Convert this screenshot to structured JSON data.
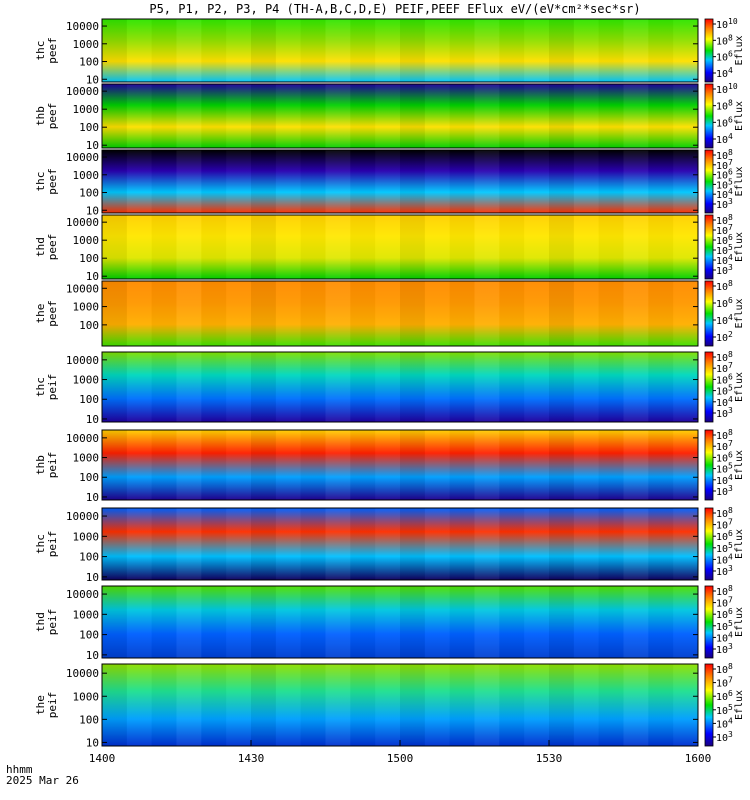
{
  "chart_data": {
    "type": "heatmap",
    "title": "P5, P1, P2, P3, P4 (TH-A,B,C,D,E) PEIF,PEEF EFlux eV/(eV*cm²*sec*sr)",
    "x_axis": {
      "ticks": [
        "1400",
        "1430",
        "1500",
        "1530",
        "1600"
      ],
      "label_lines": [
        "hhmm",
        "2025 Mar 26"
      ]
    },
    "colorbar_label": "Eflux",
    "panels": [
      {
        "label": [
          "thc",
          "peef"
        ],
        "yticks": [
          "10000",
          "1000",
          "100",
          "10"
        ],
        "cbticks": [
          "10^10",
          "10^8",
          "10^6",
          "10^4"
        ],
        "colors": [
          "#2ee600",
          "#8de000",
          "#ffe000",
          "#00c8ff"
        ]
      },
      {
        "label": [
          "thb",
          "peef"
        ],
        "yticks": [
          "10000",
          "1000",
          "100",
          "10"
        ],
        "cbticks": [
          "10^10",
          "10^8",
          "10^6",
          "10^4"
        ],
        "colors": [
          "#1e00a0",
          "#00d000",
          "#ffe000",
          "#00d000"
        ]
      },
      {
        "label": [
          "thc",
          "peef"
        ],
        "yticks": [
          "10000",
          "1000",
          "100",
          "10"
        ],
        "cbticks": [
          "10^8",
          "10^7",
          "10^6",
          "10^5",
          "10^4",
          "10^3"
        ],
        "colors": [
          "#000000",
          "#2a00b0",
          "#00c8ff",
          "#ff3000"
        ]
      },
      {
        "label": [
          "thd",
          "peef"
        ],
        "yticks": [
          "10000",
          "1000",
          "100",
          "10"
        ],
        "cbticks": [
          "10^8",
          "10^7",
          "10^6",
          "10^5",
          "10^4",
          "10^3"
        ],
        "colors": [
          "#ffd000",
          "#ffe800",
          "#e0e800",
          "#00d000"
        ]
      },
      {
        "label": [
          "the",
          "peef"
        ],
        "yticks": [
          "10000",
          "1000",
          "100"
        ],
        "cbticks": [
          "10^8",
          "10^6",
          "10^4",
          "10^2"
        ],
        "colors": [
          "#ff8c00",
          "#ff9800",
          "#ffb000",
          "#40e000"
        ]
      },
      {
        "label": [
          "thc",
          "peif"
        ],
        "yticks": [
          "10000",
          "1000",
          "100",
          "10"
        ],
        "cbticks": [
          "10^8",
          "10^7",
          "10^6",
          "10^5",
          "10^4",
          "10^3"
        ],
        "colors": [
          "#80e000",
          "#00d8c0",
          "#0070ff",
          "#2000a0"
        ]
      },
      {
        "label": [
          "thb",
          "peif"
        ],
        "yticks": [
          "10000",
          "1000",
          "100",
          "10"
        ],
        "cbticks": [
          "10^8",
          "10^7",
          "10^6",
          "10^5",
          "10^4",
          "10^3"
        ],
        "colors": [
          "#ffd000",
          "#ff2000",
          "#00a0ff",
          "#200090"
        ]
      },
      {
        "label": [
          "thc",
          "peif"
        ],
        "yticks": [
          "10000",
          "1000",
          "100",
          "10"
        ],
        "cbticks": [
          "10^8",
          "10^7",
          "10^6",
          "10^5",
          "10^4",
          "10^3"
        ],
        "colors": [
          "#0060ff",
          "#ff3000",
          "#00c0ff",
          "#100060"
        ]
      },
      {
        "label": [
          "thd",
          "peif"
        ],
        "yticks": [
          "10000",
          "1000",
          "100",
          "10"
        ],
        "cbticks": [
          "10^8",
          "10^7",
          "10^6",
          "10^5",
          "10^4",
          "10^3"
        ],
        "colors": [
          "#50e000",
          "#00c8e0",
          "#0060ff",
          "#0040d0"
        ]
      },
      {
        "label": [
          "the",
          "peif"
        ],
        "yticks": [
          "10000",
          "1000",
          "100",
          "10"
        ],
        "cbticks": [
          "10^8",
          "10^7",
          "10^6",
          "10^5",
          "10^4",
          "10^3"
        ],
        "colors": [
          "#90e000",
          "#20e090",
          "#00a0ff",
          "#0030d0"
        ]
      }
    ]
  }
}
